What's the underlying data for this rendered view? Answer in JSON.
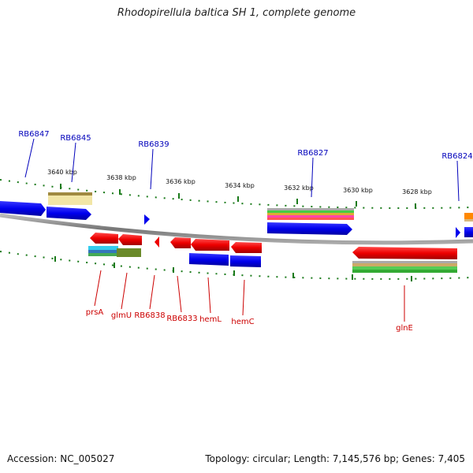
{
  "title": "Rhodopirellula baltica SH 1, complete genome",
  "footer": {
    "accession": "Accession: NC_005027",
    "summary": "Topology: circular; Length: 7,145,576 bp; Genes: 7,405"
  },
  "ruler": {
    "labels": [
      "3640 kbp",
      "3638 kbp",
      "3636 kbp",
      "3634 kbp",
      "3632 kbp",
      "3630 kbp",
      "3628 kbp"
    ]
  },
  "genes_top": [
    "RB6847",
    "RB6845",
    "RB6839",
    "RB6827",
    "RB6824"
  ],
  "genes_bottom": [
    "prsA",
    "glmU",
    "RB6838",
    "RB6833",
    "hemL",
    "hemC",
    "glnE"
  ],
  "colors": {
    "top_label": "#0000bb",
    "bottom_label": "#cc0000",
    "cds": "#0000ee",
    "gene_red": "#ee0000",
    "ruler_green": "#1a7a1a",
    "backbone": "#888888"
  }
}
